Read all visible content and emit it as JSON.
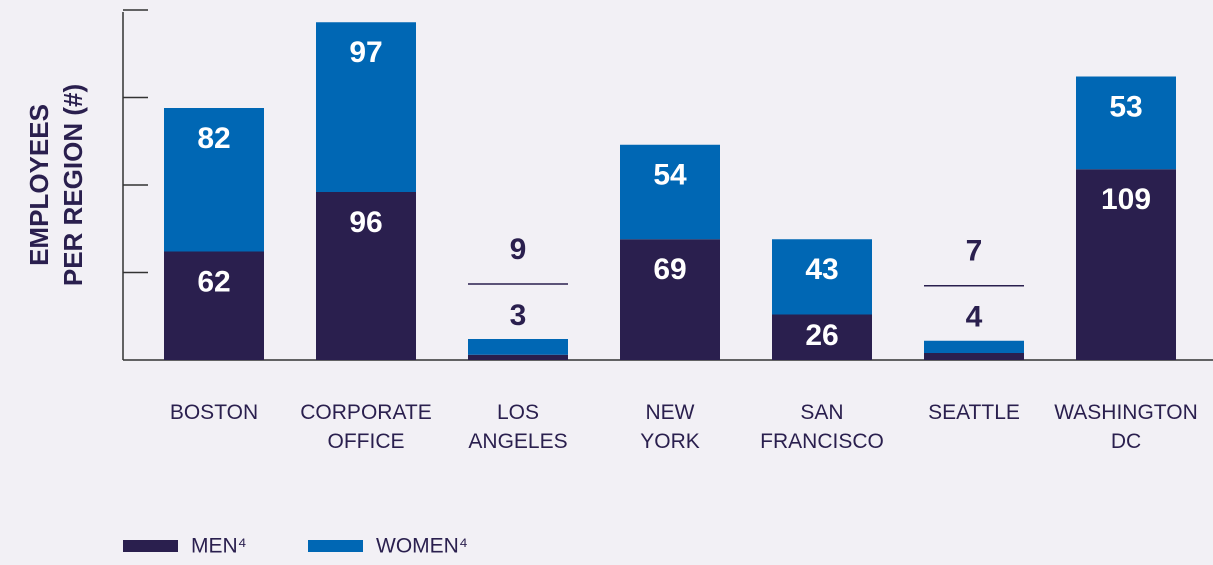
{
  "chart_data": {
    "type": "stacked_bar",
    "ylabel": "EMPLOYEES PER REGION (#)",
    "categories": [
      "BOSTON",
      "CORPORATE OFFICE",
      "LOS ANGELES",
      "NEW YORK",
      "SAN FRANCISCO",
      "SEATTLE",
      "WASHINGTON DC"
    ],
    "series": [
      {
        "name": "MEN⁴",
        "color": "#2a1f4e",
        "values": [
          62,
          96,
          3,
          69,
          26,
          4,
          109
        ]
      },
      {
        "name": "WOMEN⁴",
        "color": "#0067b4",
        "values": [
          82,
          97,
          9,
          54,
          43,
          7,
          53
        ]
      }
    ],
    "ylim": [
      0,
      200
    ],
    "yticks": [
      50,
      100,
      150,
      200
    ],
    "legend": "bottom-left"
  }
}
